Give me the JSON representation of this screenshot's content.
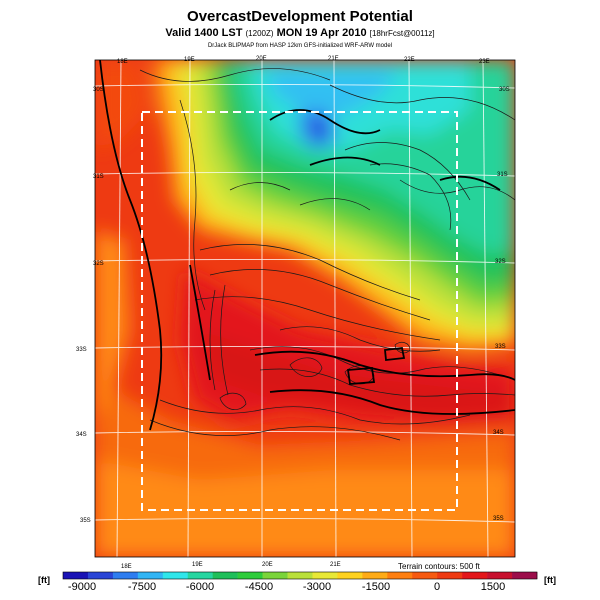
{
  "header": {
    "title": "OvercastDevelopment Potential",
    "valid_prefix": "Valid 1400 LST",
    "valid_small": "(1200Z)",
    "valid_day": "MON 19 Apr 2010",
    "valid_fcst": "[18hrFcst@0011z]",
    "credit": "DrJack BLIPMAP from HASP 12km GFS-initialized WRF-ARW model"
  },
  "map": {
    "lon_labels_top": [
      "18E",
      "19E",
      "20E",
      "21E",
      "22E",
      "23E"
    ],
    "lon_labels_bottom": [
      "18E",
      "19E",
      "20E",
      "21E"
    ],
    "lat_labels_left": [
      "30S",
      "31S",
      "32S",
      "33S",
      "34S",
      "35S"
    ],
    "lat_labels_right": [
      "30S",
      "31S",
      "32S",
      "33S",
      "34S",
      "35S"
    ],
    "terrain_note": "Terrain contours: 500 ft"
  },
  "colorbar": {
    "unit_left": "[ft]",
    "unit_right": "[ft]",
    "ticks": [
      "-9000",
      "-7500",
      "-6000",
      "-4500",
      "-3000",
      "-1500",
      "0",
      "1500"
    ],
    "colors": [
      "#1a13b5",
      "#2a45d6",
      "#2e7df0",
      "#31b5f5",
      "#2fe6ea",
      "#26d6a0",
      "#1fbf5a",
      "#2ecc3b",
      "#7ad43a",
      "#b9e03a",
      "#e8e836",
      "#ffd21f",
      "#ffab16",
      "#ff7f10",
      "#f65a10",
      "#ee3a12",
      "#e3161a",
      "#c8102e",
      "#9c0d4a"
    ]
  }
}
